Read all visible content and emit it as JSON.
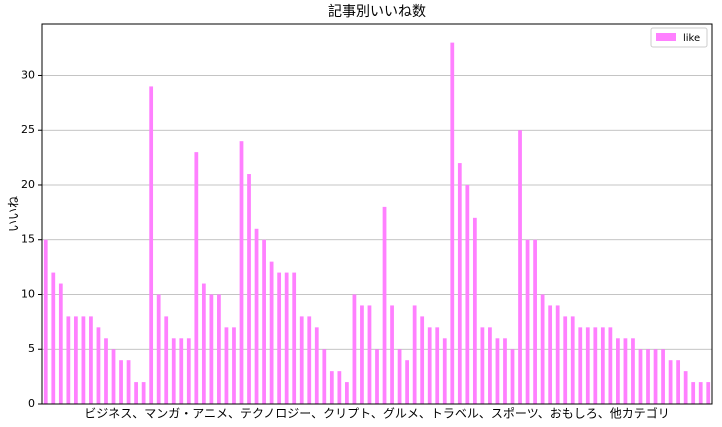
{
  "chart_data": {
    "type": "bar",
    "title": "記事別いいね数",
    "x_label": "ビジネス、マンガ・アニメ、テクノロジー、クリプト、グルメ、トラベル、スポーツ、おもしろ、他カテゴリ",
    "y_label": "いいね",
    "series": [
      {
        "name": "like",
        "color": "#ff80ff",
        "values": [
          15,
          12,
          11,
          8,
          8,
          8,
          8,
          7,
          6,
          5,
          4,
          4,
          2,
          2,
          29,
          10,
          8,
          6,
          6,
          6,
          23,
          11,
          10,
          10,
          7,
          7,
          24,
          21,
          16,
          15,
          13,
          12,
          12,
          12,
          8,
          8,
          7,
          5,
          3,
          3,
          2,
          10,
          9,
          9,
          5,
          18,
          9,
          5,
          4,
          9,
          8,
          7,
          7,
          6,
          33,
          22,
          20,
          17,
          7,
          7,
          6,
          6,
          5,
          25,
          15,
          15,
          10,
          9,
          9,
          8,
          8,
          7,
          7,
          7,
          7,
          7,
          6,
          6,
          6,
          5,
          5,
          5,
          5,
          4,
          4,
          3,
          2,
          2,
          2
        ]
      }
    ],
    "ylim": [
      0,
      34.7
    ],
    "yticks": [
      0,
      5,
      10,
      15,
      20,
      25,
      30
    ],
    "grid": true,
    "legend": "upper right"
  }
}
